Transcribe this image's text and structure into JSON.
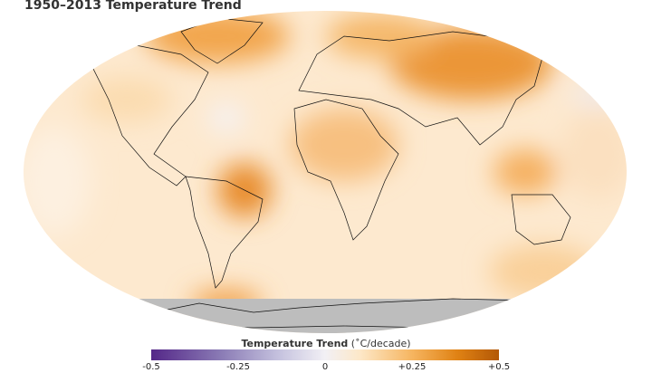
{
  "title": "1950–2013 Temperature Trend",
  "legend": {
    "title_bold": "Temperature Trend",
    "title_unit": "(˚C/decade)",
    "ticks": [
      "-0.5",
      "-0.25",
      "0",
      "+0.25",
      "+0.5"
    ],
    "range": [
      -0.5,
      0.5
    ],
    "colors": {
      "min": "#542788",
      "mid": "#f7f7f7",
      "max": "#b35806",
      "no_data": "#bdbdbd"
    }
  }
}
